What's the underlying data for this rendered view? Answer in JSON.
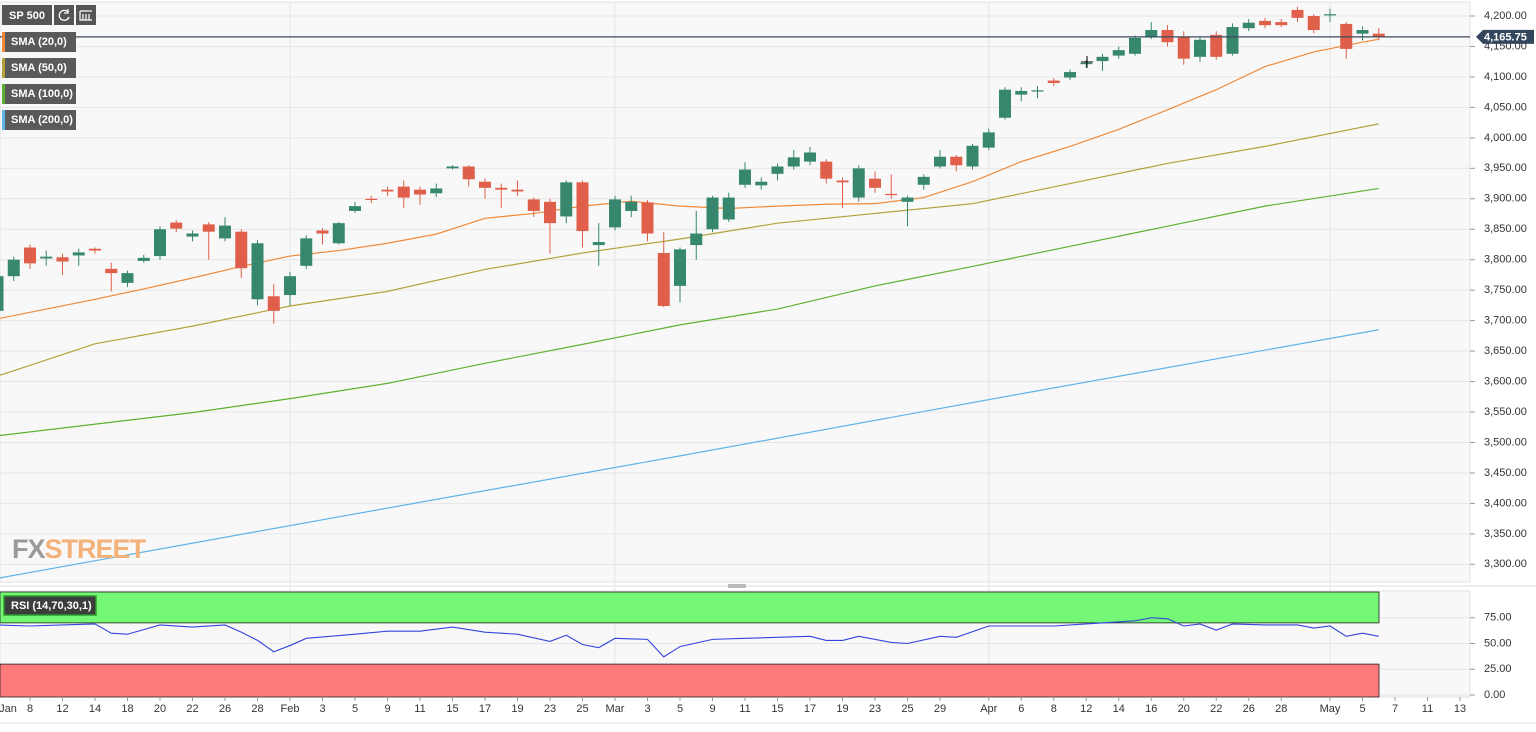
{
  "chart_data": [
    {
      "type": "candlestick",
      "symbol": "SP 500",
      "watermark": {
        "left": "FX",
        "right": "STREET"
      },
      "categories": [
        "Jan",
        null,
        "8",
        null,
        "12",
        null,
        "14",
        null,
        "18",
        null,
        "20",
        null,
        "22",
        null,
        "26",
        null,
        "28",
        null,
        "Feb",
        null,
        "3",
        null,
        "5",
        null,
        "9",
        null,
        "11",
        null,
        "15",
        null,
        "17",
        null,
        "19",
        null,
        "23",
        null,
        "25",
        null,
        "Mar",
        null,
        "3",
        null,
        "5",
        null,
        "9",
        null,
        "11",
        null,
        "15",
        null,
        "17",
        null,
        "19",
        null,
        "23",
        null,
        "25",
        null,
        "29",
        null,
        null,
        "Apr",
        null,
        "6",
        null,
        "8",
        null,
        "12",
        null,
        "14",
        null,
        "16",
        null,
        "20",
        null,
        "22",
        null,
        "26",
        null,
        "28",
        null,
        null,
        "May",
        null,
        "5",
        null,
        "7",
        null,
        "11",
        null,
        "13"
      ],
      "open": [
        3716,
        3773,
        3820,
        3802,
        3804,
        3807,
        3818,
        3785,
        3762,
        3798,
        3806,
        3861,
        3838,
        3858,
        3835,
        3846,
        3735,
        3740,
        3742,
        3790,
        3848,
        3827,
        3880,
        3900,
        3915,
        3920,
        3915,
        3909,
        3950,
        3953,
        3928,
        3918,
        3915,
        3899,
        3895,
        3871,
        3927,
        3824,
        3853,
        3880,
        3894,
        3811,
        3757,
        3824,
        3850,
        3866,
        3923,
        3922,
        3941,
        3953,
        3961,
        3961,
        3930,
        3902,
        3933,
        3908,
        3895,
        3923,
        3953,
        3969,
        3953,
        3984,
        4033,
        4071,
        4076,
        4094,
        4099,
        4121,
        4126,
        4135,
        4138,
        4166,
        4177,
        4166,
        4133,
        4169,
        4138,
        4180,
        4192,
        4190,
        4210,
        4200,
        4201,
        4187,
        4171,
        4171,
        null,
        null,
        null,
        null,
        null
      ],
      "high": [
        3780,
        3805,
        3825,
        3815,
        3810,
        3818,
        3820,
        3795,
        3782,
        3808,
        3855,
        3865,
        3848,
        3862,
        3870,
        3850,
        3832,
        3760,
        3780,
        3840,
        3852,
        3862,
        3895,
        3905,
        3920,
        3930,
        3920,
        3925,
        3955,
        3955,
        3933,
        3925,
        3930,
        3902,
        3900,
        3930,
        3930,
        3860,
        3905,
        3905,
        3898,
        3845,
        3820,
        3880,
        3905,
        3910,
        3960,
        3935,
        3958,
        3980,
        3985,
        3965,
        3935,
        3955,
        3945,
        3940,
        3905,
        3940,
        3980,
        3972,
        3990,
        4015,
        4083,
        4083,
        4085,
        4098,
        4112,
        4128,
        4138,
        4150,
        4168,
        4190,
        4185,
        4175,
        4165,
        4175,
        4188,
        4195,
        4197,
        4195,
        4215,
        4203,
        4212,
        4190,
        4183,
        4180,
        null,
        null,
        null,
        null,
        null
      ],
      "low": [
        3710,
        3765,
        3785,
        3790,
        3775,
        3790,
        3810,
        3748,
        3755,
        3795,
        3800,
        3845,
        3830,
        3800,
        3830,
        3770,
        3725,
        3695,
        3725,
        3785,
        3825,
        3825,
        3877,
        3893,
        3905,
        3885,
        3890,
        3903,
        3948,
        3920,
        3900,
        3885,
        3905,
        3870,
        3810,
        3860,
        3820,
        3790,
        3848,
        3870,
        3830,
        3722,
        3730,
        3800,
        3845,
        3862,
        3918,
        3915,
        3930,
        3948,
        3955,
        3925,
        3885,
        3895,
        3910,
        3900,
        3855,
        3915,
        3950,
        3945,
        3948,
        3980,
        4030,
        4060,
        4065,
        4085,
        4095,
        4115,
        4110,
        4130,
        4135,
        4162,
        4150,
        4120,
        4125,
        4128,
        4135,
        4175,
        4180,
        4182,
        4190,
        4172,
        4190,
        4130,
        4160,
        4160,
        null,
        null,
        null,
        null,
        null
      ],
      "close": [
        3773,
        3800,
        3794,
        3805,
        3797,
        3812,
        3815,
        3778,
        3778,
        3803,
        3850,
        3851,
        3843,
        3846,
        3856,
        3786,
        3827,
        3716,
        3773,
        3835,
        3843,
        3860,
        3888,
        3898,
        3912,
        3902,
        3907,
        3917,
        3953,
        3932,
        3918,
        3915,
        3912,
        3880,
        3860,
        3927,
        3847,
        3829,
        3899,
        3895,
        3843,
        3724,
        3817,
        3843,
        3902,
        3902,
        3948,
        3928,
        3953,
        3968,
        3976,
        3933,
        3927,
        3950,
        3918,
        3906,
        3902,
        3936,
        3969,
        3955,
        3987,
        4009,
        4079,
        4077,
        4078,
        4090,
        4108,
        4123,
        4133,
        4144,
        4164,
        4177,
        4157,
        4130,
        4161,
        4133,
        4182,
        4189,
        4185,
        4185,
        4197,
        4177,
        4203,
        4146,
        4177,
        4165,
        null,
        null,
        null,
        null,
        null
      ],
      "up_color": "#37876f",
      "down_color": "#df5f4a",
      "series": [
        {
          "name": "SMA (20,0)",
          "color": "#f08a3a",
          "x": [
            0,
            6,
            9,
            12,
            15,
            18,
            21,
            24,
            27,
            30,
            33,
            36,
            39,
            42,
            45,
            48,
            51,
            54,
            57,
            60,
            63,
            66,
            69,
            72,
            75,
            78,
            81,
            84,
            85
          ],
          "values": [
            3703,
            3735,
            3752,
            3770,
            3789,
            3806,
            3815,
            3827,
            3842,
            3868,
            3876,
            3888,
            3896,
            3888,
            3884,
            3888,
            3891,
            3892,
            3902,
            3928,
            3961,
            3986,
            4014,
            4046,
            4079,
            4117,
            4141,
            4157,
            4162
          ]
        },
        {
          "name": "SMA (50,0)",
          "color": "#b3a23a",
          "x": [
            0,
            6,
            12,
            18,
            24,
            30,
            36,
            42,
            48,
            54,
            60,
            66,
            72,
            78,
            85
          ],
          "values": [
            3609,
            3662,
            3691,
            3724,
            3748,
            3784,
            3811,
            3834,
            3860,
            3876,
            3892,
            3925,
            3958,
            3986,
            4023
          ]
        },
        {
          "name": "SMA (100,0)",
          "color": "#5cb230",
          "x": [
            0,
            12,
            18,
            24,
            30,
            36,
            42,
            48,
            54,
            60,
            66,
            72,
            78,
            85
          ],
          "values": [
            3511,
            3549,
            3572,
            3597,
            3630,
            3661,
            3693,
            3719,
            3757,
            3789,
            3822,
            3855,
            3888,
            3917
          ]
        },
        {
          "name": "SMA (200,0)",
          "color": "#5fb4e8",
          "x": [
            0,
            21,
            42,
            63,
            85
          ],
          "values": [
            3277,
            3378,
            3478,
            3580,
            3685
          ]
        }
      ],
      "last": {
        "value": 4165.75,
        "label": "4,165.75"
      },
      "ylim": [
        3271,
        4223
      ],
      "yticks": [
        {
          "value": 4200,
          "label": "4,200.00"
        },
        {
          "value": 4150,
          "label": "4,150.00"
        },
        {
          "value": 4100,
          "label": "4,100.00"
        },
        {
          "value": 4050,
          "label": "4,050.00"
        },
        {
          "value": 4000,
          "label": "4,000.00"
        },
        {
          "value": 3950,
          "label": "3,950.00"
        },
        {
          "value": 3900,
          "label": "3,900.00"
        },
        {
          "value": 3850,
          "label": "3,850.00"
        },
        {
          "value": 3800,
          "label": "3,800.00"
        },
        {
          "value": 3750,
          "label": "3,750.00"
        },
        {
          "value": 3700,
          "label": "3,700.00"
        },
        {
          "value": 3650,
          "label": "3,650.00"
        },
        {
          "value": 3600,
          "label": "3,600.00"
        },
        {
          "value": 3550,
          "label": "3,550.00"
        },
        {
          "value": 3500,
          "label": "3,500.00"
        },
        {
          "value": 3450,
          "label": "3,450.00"
        },
        {
          "value": 3400,
          "label": "3,400.00"
        },
        {
          "value": 3350,
          "label": "3,350.00"
        },
        {
          "value": 3300,
          "label": "3,300.00"
        }
      ],
      "grid": true
    },
    {
      "type": "line",
      "name": "RSI (14,70,30,1)",
      "color": "#3344dd",
      "x": [
        0,
        2,
        4,
        6,
        7,
        8,
        10,
        12,
        14,
        15,
        16,
        17,
        18,
        19,
        22,
        24,
        26,
        28,
        30,
        32,
        34,
        35,
        36,
        37,
        38,
        40,
        41,
        42,
        44,
        46,
        48,
        50,
        51,
        52,
        53,
        55,
        56,
        58,
        59,
        61,
        63,
        65,
        67,
        70,
        71,
        72,
        73,
        74,
        75,
        76,
        78,
        80,
        81,
        82,
        83,
        84,
        85
      ],
      "values": [
        68,
        67,
        68,
        69,
        60,
        59,
        68,
        66,
        68,
        61,
        53,
        42,
        48,
        55,
        59,
        62,
        62,
        66,
        61,
        59,
        52,
        58,
        49,
        46,
        55,
        54,
        37,
        47,
        54,
        55,
        56,
        57,
        53,
        53,
        57,
        51,
        50,
        57,
        56,
        67,
        67,
        67,
        69,
        72,
        75,
        74,
        67,
        69,
        63,
        69,
        68,
        68,
        65,
        67,
        57,
        60,
        57
      ],
      "zones": {
        "upper": 70,
        "lower": 30,
        "upper_color": "#74f774",
        "lower_color": "#ff7b7b"
      },
      "ylim": [
        0,
        100
      ],
      "yticks": [
        {
          "value": 75,
          "label": "75.00"
        },
        {
          "value": 50,
          "label": "50.00"
        },
        {
          "value": 25,
          "label": "25.00"
        },
        {
          "value": 0,
          "label": "0.00"
        }
      ],
      "grid": true
    }
  ]
}
